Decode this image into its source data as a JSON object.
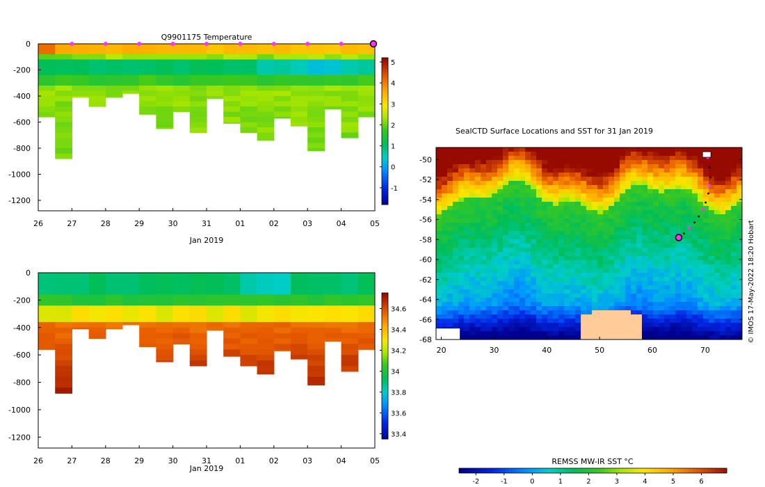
{
  "chart_data": [
    {
      "id": "temperature",
      "type": "heatmap",
      "title": "Q9901175  Temperature",
      "xlabel": "Jan 2019",
      "x_ticks": [
        "26",
        "27",
        "28",
        "29",
        "30",
        "31",
        "01",
        "02",
        "03",
        "04",
        "05"
      ],
      "y_ticks": [
        0,
        -200,
        -400,
        -600,
        -800,
        -1000,
        -1200
      ],
      "ylim": [
        -1280,
        0
      ],
      "colorbar": {
        "ticks": [
          5,
          4,
          3,
          2,
          1,
          0,
          -1
        ],
        "range": [
          -1.8,
          5.2
        ]
      },
      "profile_days": [
        0,
        0.5,
        1,
        1.5,
        2,
        2.5,
        3,
        3.5,
        4,
        4.5,
        5,
        5.5,
        6,
        6.5,
        7,
        7.5,
        8,
        8.5,
        9,
        9.5
      ],
      "profile_max_depths": [
        -560,
        -880,
        -410,
        -480,
        -410,
        -380,
        -540,
        -650,
        -520,
        -680,
        -420,
        -610,
        -680,
        -740,
        -570,
        -630,
        -820,
        -500,
        -720,
        -560
      ],
      "markers_days": [
        1,
        2,
        3,
        4,
        5,
        6,
        7,
        8,
        9
      ],
      "end_marker_day": 10
    },
    {
      "id": "salinity",
      "type": "heatmap",
      "title": "",
      "xlabel": "Jan 2019",
      "x_ticks": [
        "26",
        "27",
        "28",
        "29",
        "30",
        "31",
        "01",
        "02",
        "03",
        "04",
        "05"
      ],
      "y_ticks": [
        0,
        -200,
        -400,
        -600,
        -800,
        -1000,
        -1200
      ],
      "ylim": [
        -1280,
        0
      ],
      "colorbar": {
        "ticks": [
          34.6,
          34.4,
          34.2,
          34,
          33.8,
          33.6,
          33.4
        ],
        "range": [
          33.35,
          34.75
        ]
      },
      "profile_days": [
        0,
        0.5,
        1,
        1.5,
        2,
        2.5,
        3,
        3.5,
        4,
        4.5,
        5,
        5.5,
        6,
        6.5,
        7,
        7.5,
        8,
        8.5,
        9,
        9.5
      ],
      "profile_max_depths": [
        -560,
        -880,
        -410,
        -480,
        -410,
        -380,
        -540,
        -650,
        -520,
        -680,
        -420,
        -610,
        -680,
        -740,
        -570,
        -630,
        -820,
        -500,
        -720,
        -560
      ]
    },
    {
      "id": "map",
      "type": "heatmap",
      "title": "SealCTD Surface Locations and SST for 31 Jan 2019",
      "x_ticks": [
        20,
        30,
        40,
        50,
        60,
        70
      ],
      "y_ticks": [
        -50,
        -52,
        -54,
        -56,
        -58,
        -60,
        -62,
        -64,
        -66,
        -68
      ],
      "xlim": [
        19,
        77
      ],
      "ylim": [
        -68,
        -48.8
      ],
      "credit": "© IMOS 17-May-2022 18:20 Hobart",
      "track": [
        [
          70.5,
          -49.8
        ],
        [
          70.8,
          -50.8
        ],
        [
          71,
          -51.8
        ],
        [
          70.8,
          -52.6
        ],
        [
          70.6,
          -53.4
        ],
        [
          70.1,
          -54.3
        ],
        [
          69.6,
          -55
        ],
        [
          68.8,
          -55.7
        ],
        [
          68,
          -56.3
        ],
        [
          67,
          -56.9
        ],
        [
          66,
          -57.4
        ],
        [
          65,
          -57.8
        ]
      ],
      "current_position": [
        65,
        -57.8
      ],
      "start_position": [
        70.3,
        -49.5
      ]
    }
  ],
  "colorbar_sst": {
    "label": "REMSS MW-IR SST °C",
    "ticks": [
      -2,
      -1,
      0,
      1,
      2,
      3,
      4,
      5,
      6
    ],
    "range": [
      -2.6,
      6.9
    ]
  },
  "colors": {
    "marker": "#ff33ff",
    "land": "#ffcc99",
    "ink": "#000000"
  }
}
